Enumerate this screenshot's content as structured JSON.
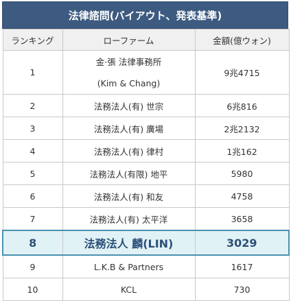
{
  "title": "法律諮問(バイアウト、発表基準)",
  "headers": {
    "rank": "ランキング",
    "firm": "ローファーム",
    "amount": "金額(億ウォン)"
  },
  "rows": [
    {
      "rank": "1",
      "firm": "金·張 法律事務所",
      "firm_line2": "(Kim & Chang)",
      "amount": "9兆4715"
    },
    {
      "rank": "2",
      "firm": "法務法人(有) 世宗",
      "amount": "6兆816"
    },
    {
      "rank": "3",
      "firm": "法務法人(有) 廣場",
      "amount": "2兆2132"
    },
    {
      "rank": "4",
      "firm": "法務法人(有) 律村",
      "amount": "1兆162"
    },
    {
      "rank": "5",
      "firm": "法務法人(有限) 地平",
      "amount": "5980"
    },
    {
      "rank": "6",
      "firm": "法務法人(有) 和友",
      "amount": "4758"
    },
    {
      "rank": "7",
      "firm": "法務法人(有) 太平洋",
      "amount": "3658"
    },
    {
      "rank": "8",
      "firm": "法務法人 麟(LIN)",
      "amount": "3029"
    },
    {
      "rank": "9",
      "firm": "L.K.B & Partners",
      "amount": "1617"
    },
    {
      "rank": "10",
      "firm": "KCL",
      "amount": "730"
    }
  ]
}
